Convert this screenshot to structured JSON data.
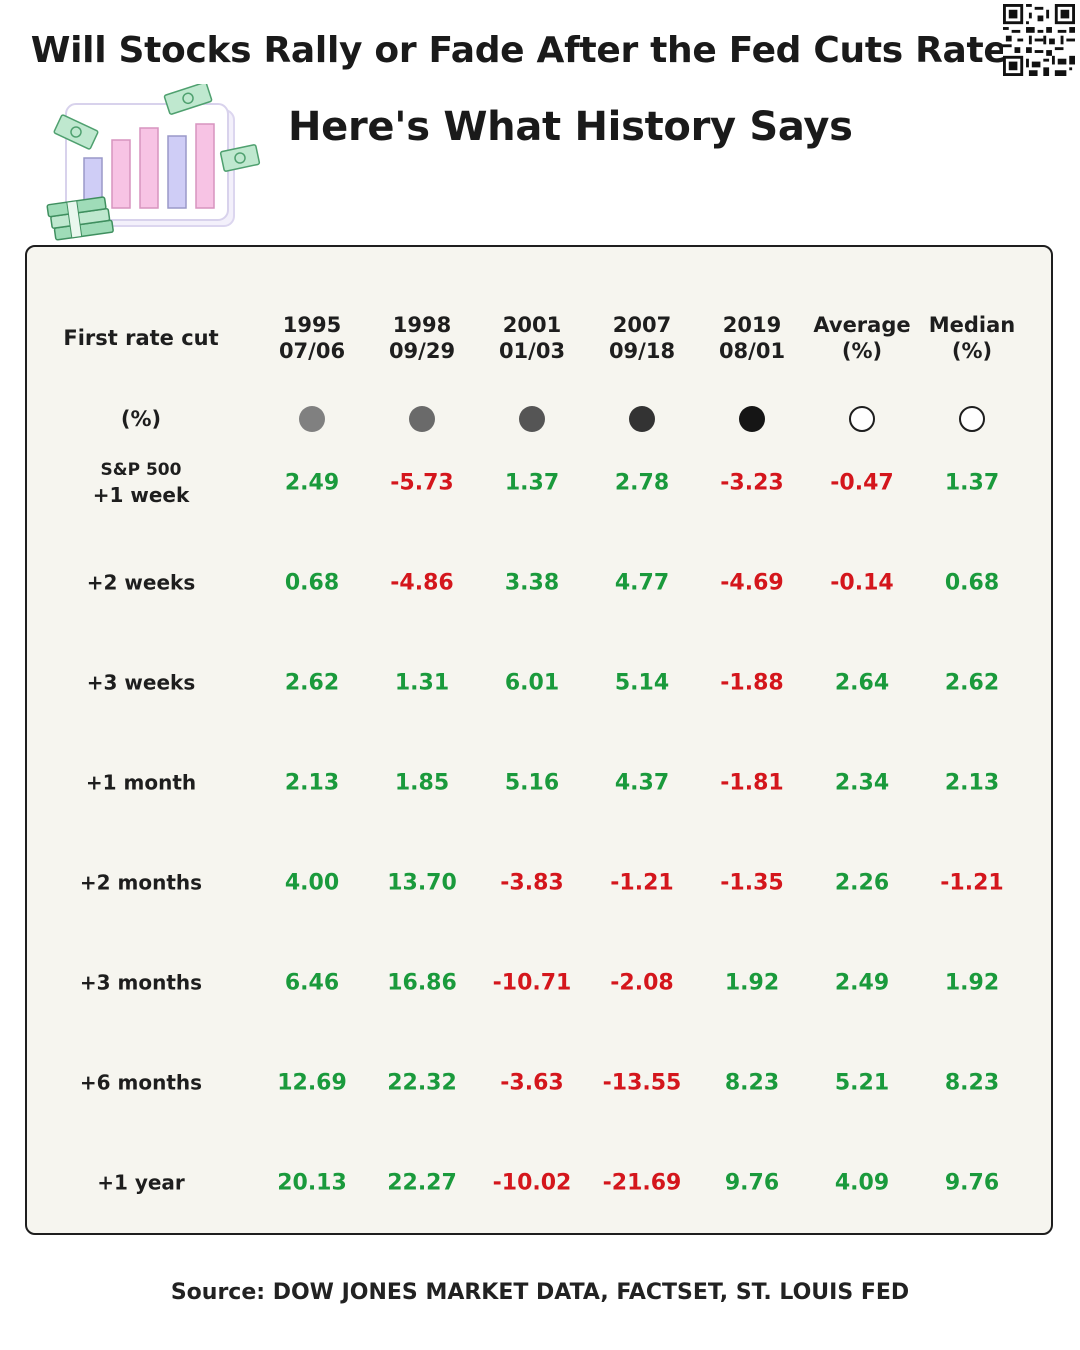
{
  "title": "Will Stocks Rally or Fade After the Fed Cuts Rates?",
  "subtitle": "Here's What History Says",
  "source": "Source: DOW JONES MARKET DATA, FACTSET, ST. LOUIS FED",
  "chart_data": {
    "type": "table",
    "corner_label": "First rate cut",
    "unit_label": "(%)",
    "columns": [
      {
        "line1": "1995",
        "line2": "07/06",
        "dot_color": "#808080",
        "dot_style": "filled"
      },
      {
        "line1": "1998",
        "line2": "09/29",
        "dot_color": "#6a6a6a",
        "dot_style": "filled"
      },
      {
        "line1": "2001",
        "line2": "01/03",
        "dot_color": "#555555",
        "dot_style": "filled"
      },
      {
        "line1": "2007",
        "line2": "09/18",
        "dot_color": "#333333",
        "dot_style": "filled"
      },
      {
        "line1": "2019",
        "line2": "08/01",
        "dot_color": "#151515",
        "dot_style": "filled"
      },
      {
        "line1": "Average",
        "line2": "(%)",
        "dot_color": "#ffffff",
        "dot_style": "outline"
      },
      {
        "line1": "Median",
        "line2": "(%)",
        "dot_color": "#ffffff",
        "dot_style": "outline"
      }
    ],
    "rows": [
      {
        "label_top": "S&P 500",
        "label": "+1 week",
        "values": [
          2.49,
          -5.73,
          1.37,
          2.78,
          -3.23,
          -0.47,
          1.37
        ]
      },
      {
        "label": "+2 weeks",
        "values": [
          0.68,
          -4.86,
          3.38,
          4.77,
          -4.69,
          -0.14,
          0.68
        ]
      },
      {
        "label": "+3 weeks",
        "values": [
          2.62,
          1.31,
          6.01,
          5.14,
          -1.88,
          2.64,
          2.62
        ]
      },
      {
        "label": "+1 month",
        "values": [
          2.13,
          1.85,
          5.16,
          4.37,
          -1.81,
          2.34,
          2.13
        ]
      },
      {
        "label": "+2 months",
        "values": [
          4.0,
          13.7,
          -3.83,
          -1.21,
          -1.35,
          2.26,
          -1.21
        ]
      },
      {
        "label": "+3 months",
        "values": [
          6.46,
          16.86,
          -10.71,
          -2.08,
          1.92,
          2.49,
          1.92
        ]
      },
      {
        "label": "+6 months",
        "values": [
          12.69,
          22.32,
          -3.63,
          -13.55,
          8.23,
          5.21,
          8.23
        ]
      },
      {
        "label": "+1 year",
        "values": [
          20.13,
          22.27,
          -10.02,
          -21.69,
          9.76,
          4.09,
          9.76
        ]
      }
    ],
    "positive_color": "#1a9a3c",
    "negative_color": "#d4161c"
  }
}
